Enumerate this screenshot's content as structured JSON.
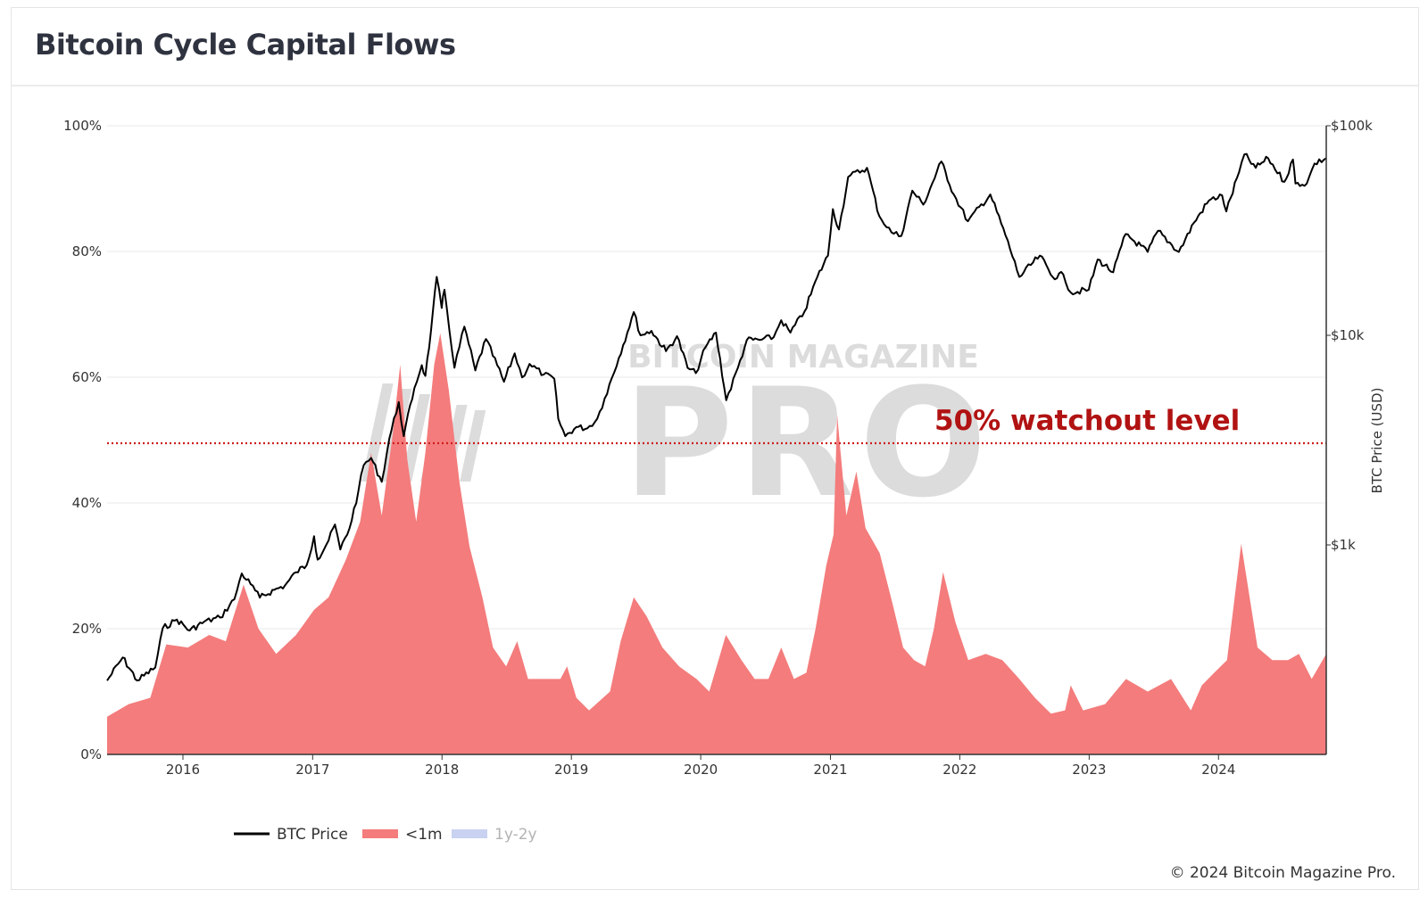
{
  "page": {
    "title": "Bitcoin Cycle Capital Flows",
    "copyright": "© 2024 Bitcoin Magazine Pro."
  },
  "watermark": {
    "top_text": "BITCOIN MAGAZINE",
    "main_text": "PRO"
  },
  "colors": {
    "price_line": "#000000",
    "lt1m_fill": "#f47c7c",
    "y1y2_fill": "#c9d2f0",
    "watchout_line": "#cc1f1f",
    "grid": "#e9e9e9",
    "watermark": "#dcdcdc"
  },
  "chart_data": {
    "type": "area",
    "title": "Bitcoin Cycle Capital Flows",
    "x_ticks": [
      "2016",
      "2017",
      "2018",
      "2019",
      "2020",
      "2021",
      "2022",
      "2023",
      "2024"
    ],
    "xlim": [
      "2015-06-01",
      "2024-10-31"
    ],
    "y_left": {
      "ticks": [
        "0%",
        "20%",
        "40%",
        "60%",
        "80%",
        "100%"
      ],
      "range": [
        0,
        100
      ],
      "unit": "%"
    },
    "y_right": {
      "label": "BTC Price (USD)",
      "ticks": [
        "$1k",
        "$10k",
        "$100k"
      ],
      "scale": "log",
      "range": [
        100,
        100000
      ]
    },
    "grid": true,
    "legend": {
      "placement": "bottom-left"
    },
    "annotations": [
      {
        "text": "50% watchout level",
        "y": 49.5
      }
    ],
    "series": [
      {
        "name": "BTC Price",
        "type": "line",
        "axis": "right",
        "points": [
          [
            "2015-06-01",
            225
          ],
          [
            "2015-07-15",
            290
          ],
          [
            "2015-08-25",
            225
          ],
          [
            "2015-10-15",
            260
          ],
          [
            "2015-11-05",
            400
          ],
          [
            "2015-12-15",
            440
          ],
          [
            "2016-01-20",
            390
          ],
          [
            "2016-03-01",
            430
          ],
          [
            "2016-04-15",
            450
          ],
          [
            "2016-05-25",
            550
          ],
          [
            "2016-06-15",
            730
          ],
          [
            "2016-07-10",
            650
          ],
          [
            "2016-08-05",
            560
          ],
          [
            "2016-09-15",
            610
          ],
          [
            "2016-10-15",
            640
          ],
          [
            "2016-11-15",
            740
          ],
          [
            "2016-12-15",
            800
          ],
          [
            "2017-01-05",
            1100
          ],
          [
            "2017-01-15",
            850
          ],
          [
            "2017-02-15",
            1050
          ],
          [
            "2017-03-05",
            1250
          ],
          [
            "2017-03-20",
            950
          ],
          [
            "2017-04-15",
            1200
          ],
          [
            "2017-05-10",
            1800
          ],
          [
            "2017-05-25",
            2400
          ],
          [
            "2017-06-15",
            2600
          ],
          [
            "2017-07-15",
            2000
          ],
          [
            "2017-08-05",
            3200
          ],
          [
            "2017-09-01",
            4800
          ],
          [
            "2017-09-15",
            3300
          ],
          [
            "2017-10-15",
            5600
          ],
          [
            "2017-11-05",
            7200
          ],
          [
            "2017-11-15",
            6400
          ],
          [
            "2017-12-01",
            10500
          ],
          [
            "2017-12-17",
            19000
          ],
          [
            "2017-12-31",
            13500
          ],
          [
            "2018-01-08",
            16500
          ],
          [
            "2018-02-05",
            7000
          ],
          [
            "2018-03-05",
            11000
          ],
          [
            "2018-04-05",
            6800
          ],
          [
            "2018-05-05",
            9600
          ],
          [
            "2018-06-25",
            6000
          ],
          [
            "2018-07-25",
            8200
          ],
          [
            "2018-08-15",
            6300
          ],
          [
            "2018-09-05",
            7300
          ],
          [
            "2018-10-15",
            6500
          ],
          [
            "2018-11-14",
            6200
          ],
          [
            "2018-11-25",
            4000
          ],
          [
            "2018-12-15",
            3300
          ],
          [
            "2019-01-15",
            3650
          ],
          [
            "2019-02-15",
            3600
          ],
          [
            "2019-03-15",
            4000
          ],
          [
            "2019-04-05",
            5000
          ],
          [
            "2019-05-15",
            7800
          ],
          [
            "2019-06-26",
            12900
          ],
          [
            "2019-07-15",
            10000
          ],
          [
            "2019-08-15",
            10500
          ],
          [
            "2019-09-25",
            8400
          ],
          [
            "2019-10-26",
            9900
          ],
          [
            "2019-11-25",
            7000
          ],
          [
            "2019-12-18",
            6600
          ],
          [
            "2020-01-15",
            8800
          ],
          [
            "2020-02-13",
            10300
          ],
          [
            "2020-03-13",
            4900
          ],
          [
            "2020-04-15",
            7000
          ],
          [
            "2020-05-10",
            9500
          ],
          [
            "2020-06-15",
            9500
          ],
          [
            "2020-07-25",
            9800
          ],
          [
            "2020-08-15",
            11800
          ],
          [
            "2020-09-10",
            10300
          ],
          [
            "2020-10-20",
            13000
          ],
          [
            "2020-11-25",
            19000
          ],
          [
            "2020-12-25",
            24000
          ],
          [
            "2021-01-08",
            40000
          ],
          [
            "2021-01-25",
            32000
          ],
          [
            "2021-02-20",
            57000
          ],
          [
            "2021-04-14",
            63000
          ],
          [
            "2021-05-19",
            37000
          ],
          [
            "2021-06-22",
            31000
          ],
          [
            "2021-07-20",
            29800
          ],
          [
            "2021-08-20",
            49000
          ],
          [
            "2021-09-20",
            42000
          ],
          [
            "2021-11-10",
            67500
          ],
          [
            "2021-12-15",
            47000
          ],
          [
            "2022-01-24",
            35000
          ],
          [
            "2022-03-28",
            47000
          ],
          [
            "2022-05-10",
            30000
          ],
          [
            "2022-06-18",
            19000
          ],
          [
            "2022-08-15",
            24000
          ],
          [
            "2022-09-20",
            19000
          ],
          [
            "2022-10-20",
            19500
          ],
          [
            "2022-11-10",
            16000
          ],
          [
            "2022-12-31",
            16500
          ],
          [
            "2023-01-25",
            23000
          ],
          [
            "2023-03-10",
            20000
          ],
          [
            "2023-04-14",
            30400
          ],
          [
            "2023-06-15",
            25000
          ],
          [
            "2023-07-14",
            31500
          ],
          [
            "2023-09-11",
            25000
          ],
          [
            "2023-10-24",
            34500
          ],
          [
            "2023-12-05",
            44000
          ],
          [
            "2024-01-11",
            46500
          ],
          [
            "2024-01-23",
            39000
          ],
          [
            "2024-02-28",
            60000
          ],
          [
            "2024-03-14",
            73000
          ],
          [
            "2024-04-15",
            63000
          ],
          [
            "2024-05-20",
            70000
          ],
          [
            "2024-07-05",
            54000
          ],
          [
            "2024-07-29",
            69000
          ],
          [
            "2024-08-05",
            53000
          ],
          [
            "2024-09-06",
            53000
          ],
          [
            "2024-09-28",
            66000
          ],
          [
            "2024-10-31",
            70000
          ]
        ]
      },
      {
        "name": "<1m",
        "type": "area",
        "axis": "left",
        "points": [
          [
            "2015-06-01",
            6
          ],
          [
            "2015-08-01",
            8
          ],
          [
            "2015-10-01",
            9
          ],
          [
            "2015-11-15",
            17.5
          ],
          [
            "2016-01-15",
            17
          ],
          [
            "2016-03-15",
            19
          ],
          [
            "2016-05-01",
            18
          ],
          [
            "2016-06-20",
            27
          ],
          [
            "2016-08-01",
            20
          ],
          [
            "2016-09-20",
            16
          ],
          [
            "2016-11-15",
            19
          ],
          [
            "2017-01-05",
            23
          ],
          [
            "2017-02-15",
            25
          ],
          [
            "2017-04-05",
            31
          ],
          [
            "2017-05-15",
            37
          ],
          [
            "2017-06-15",
            48
          ],
          [
            "2017-07-15",
            38
          ],
          [
            "2017-08-15",
            51
          ],
          [
            "2017-09-05",
            62
          ],
          [
            "2017-09-25",
            47
          ],
          [
            "2017-10-20",
            37
          ],
          [
            "2017-11-15",
            48
          ],
          [
            "2017-12-10",
            62
          ],
          [
            "2017-12-27",
            67
          ],
          [
            "2018-01-20",
            58
          ],
          [
            "2018-02-20",
            43
          ],
          [
            "2018-03-20",
            33
          ],
          [
            "2018-04-25",
            25
          ],
          [
            "2018-05-25",
            17
          ],
          [
            "2018-07-01",
            14
          ],
          [
            "2018-08-01",
            18
          ],
          [
            "2018-09-01",
            12
          ],
          [
            "2018-10-15",
            12
          ],
          [
            "2018-12-01",
            12
          ],
          [
            "2018-12-20",
            14
          ],
          [
            "2019-01-15",
            9
          ],
          [
            "2019-02-20",
            7
          ],
          [
            "2019-04-20",
            10
          ],
          [
            "2019-05-20",
            18
          ],
          [
            "2019-06-26",
            25
          ],
          [
            "2019-08-01",
            22
          ],
          [
            "2019-09-15",
            17
          ],
          [
            "2019-11-01",
            14
          ],
          [
            "2019-12-20",
            12
          ],
          [
            "2020-01-25",
            10
          ],
          [
            "2020-03-12",
            19
          ],
          [
            "2020-04-25",
            15
          ],
          [
            "2020-06-01",
            12
          ],
          [
            "2020-07-10",
            12
          ],
          [
            "2020-08-15",
            17
          ],
          [
            "2020-09-20",
            12
          ],
          [
            "2020-10-25",
            13
          ],
          [
            "2020-11-20",
            20
          ],
          [
            "2020-12-20",
            30
          ],
          [
            "2021-01-10",
            35
          ],
          [
            "2021-01-20",
            54
          ],
          [
            "2021-02-15",
            38
          ],
          [
            "2021-03-15",
            45
          ],
          [
            "2021-04-10",
            36
          ],
          [
            "2021-05-20",
            32
          ],
          [
            "2021-06-25",
            24
          ],
          [
            "2021-07-25",
            17
          ],
          [
            "2021-08-25",
            15
          ],
          [
            "2021-09-25",
            14
          ],
          [
            "2021-10-20",
            20
          ],
          [
            "2021-11-15",
            29
          ],
          [
            "2021-12-20",
            21
          ],
          [
            "2022-01-25",
            15
          ],
          [
            "2022-03-15",
            16
          ],
          [
            "2022-05-01",
            15
          ],
          [
            "2022-06-18",
            12
          ],
          [
            "2022-08-01",
            9
          ],
          [
            "2022-09-15",
            6.5
          ],
          [
            "2022-10-25",
            7
          ],
          [
            "2022-11-10",
            11
          ],
          [
            "2022-12-15",
            7
          ],
          [
            "2023-02-15",
            8
          ],
          [
            "2023-04-15",
            12
          ],
          [
            "2023-06-15",
            10
          ],
          [
            "2023-08-20",
            12
          ],
          [
            "2023-10-15",
            7
          ],
          [
            "2023-11-15",
            11
          ],
          [
            "2023-12-20",
            13
          ],
          [
            "2024-01-25",
            15
          ],
          [
            "2024-03-05",
            33.5
          ],
          [
            "2024-04-20",
            17
          ],
          [
            "2024-06-01",
            15
          ],
          [
            "2024-07-15",
            15
          ],
          [
            "2024-08-15",
            16
          ],
          [
            "2024-09-20",
            12
          ],
          [
            "2024-10-31",
            16
          ]
        ]
      },
      {
        "name": "1y-2y",
        "type": "area",
        "axis": "left",
        "hidden": true,
        "points": []
      }
    ]
  },
  "legend_items": [
    {
      "label": "BTC Price",
      "type": "line",
      "color": "#000000"
    },
    {
      "label": "<1m",
      "type": "area",
      "color": "#f47c7c"
    },
    {
      "label": "1y-2y",
      "type": "area",
      "color": "#c9d2f0",
      "muted": true
    }
  ]
}
